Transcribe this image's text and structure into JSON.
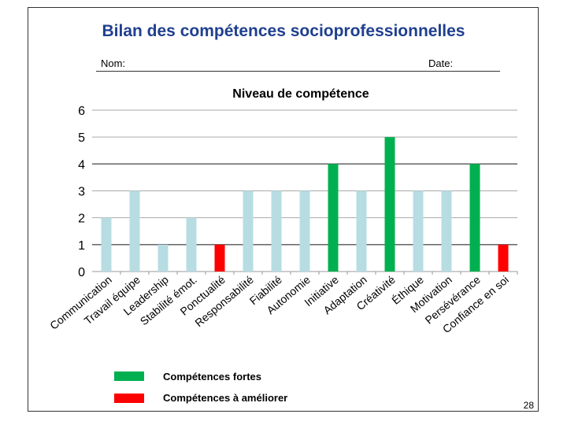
{
  "page": {
    "title": "Bilan des compétences socioprofessionnelles",
    "name_label": "Nom:",
    "date_label": "Date:",
    "page_number": "28"
  },
  "legend": {
    "items": [
      {
        "label": "Compétences fortes",
        "color": "#00b050"
      },
      {
        "label": "Compétences à améliorer",
        "color": "#ff0000"
      }
    ]
  },
  "colors": {
    "neutral": "#b7dde3",
    "strong": "#00b050",
    "weak": "#ff0000"
  },
  "chart_data": {
    "type": "bar",
    "title": "Niveau de compétence",
    "xlabel": "",
    "ylabel": "",
    "ylim": [
      0,
      6
    ],
    "yticks": [
      0,
      1,
      2,
      3,
      4,
      5,
      6
    ],
    "categories": [
      "Communication",
      "Travail équipe",
      "Leadership",
      "Stabilité émot.",
      "Ponctualité",
      "Responsabilité",
      "Fiabilité",
      "Autonomie",
      "Initiative",
      "Adaptation",
      "Créativité",
      "Éthique",
      "Motivation",
      "Persévérance",
      "Confiance en soi"
    ],
    "values": [
      2,
      3,
      1,
      2,
      1,
      3,
      3,
      3,
      4,
      3,
      5,
      3,
      3,
      4,
      1
    ],
    "status": [
      "neutral",
      "neutral",
      "neutral",
      "neutral",
      "weak",
      "neutral",
      "neutral",
      "neutral",
      "strong",
      "neutral",
      "strong",
      "neutral",
      "neutral",
      "strong",
      "weak"
    ],
    "legend": "bottom"
  }
}
